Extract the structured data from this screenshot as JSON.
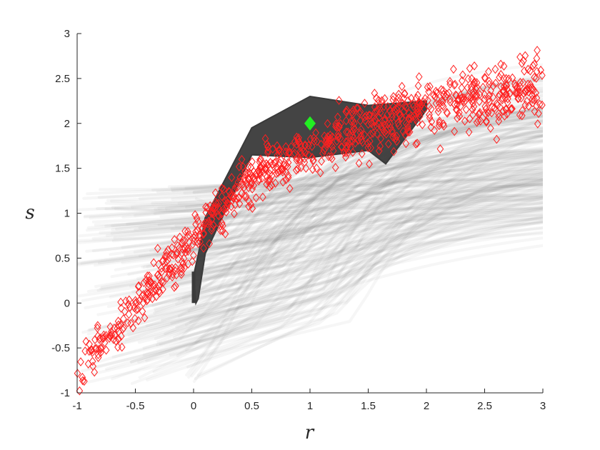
{
  "chart_data": {
    "type": "scatter",
    "title": "",
    "xlabel": "r",
    "ylabel": "s",
    "xlim": [
      -1,
      3
    ],
    "ylim": [
      -1,
      3
    ],
    "xticks": [
      "-1",
      "-0.5",
      "0",
      "0.5",
      "1",
      "1.5",
      "2",
      "2.5",
      "3"
    ],
    "yticks": [
      "-1",
      "-0.5",
      "0",
      "0.5",
      "1",
      "1.5",
      "2",
      "2.5",
      "3"
    ],
    "grid": false,
    "legend": "none",
    "colors": {
      "background_curves": "#7f7f7f",
      "envelope": "#3a3a3a",
      "samples": "#ff2020",
      "marker": "#22ee22",
      "axis": "#262626"
    },
    "trend_points": [
      [
        -1,
        -0.75
      ],
      [
        -0.5,
        -0.05
      ],
      [
        0,
        0.72
      ],
      [
        0.5,
        1.4
      ],
      [
        1,
        1.72
      ],
      [
        1.5,
        1.95
      ],
      [
        2,
        2.18
      ],
      [
        2.5,
        2.3
      ],
      [
        3,
        2.42
      ]
    ],
    "sample_count": 900,
    "envelope": {
      "upper": [
        [
          0,
          0.3
        ],
        [
          0.05,
          0.6
        ],
        [
          0.1,
          0.95
        ],
        [
          0.5,
          1.95
        ],
        [
          1,
          2.3
        ],
        [
          1.5,
          2.2
        ],
        [
          2,
          2.25
        ]
      ],
      "lower": [
        [
          2,
          2.15
        ],
        [
          1.65,
          1.55
        ],
        [
          1.5,
          1.7
        ],
        [
          1,
          1.62
        ],
        [
          0.5,
          1.65
        ],
        [
          0.1,
          0.55
        ],
        [
          0.04,
          0.05
        ],
        [
          0.02,
          0
        ]
      ]
    },
    "highlight_point": {
      "x": 1,
      "y": 2
    }
  }
}
